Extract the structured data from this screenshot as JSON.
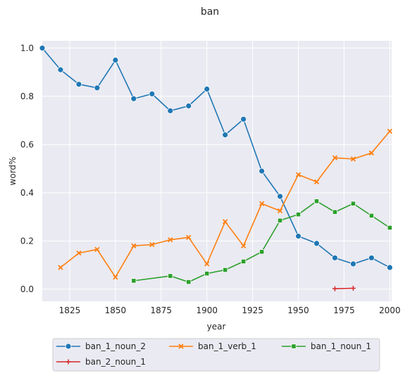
{
  "chart_data": {
    "type": "line",
    "title": "ban",
    "xlabel": "year",
    "ylabel": "word%",
    "xlim": [
      1810,
      2001
    ],
    "ylim": [
      -0.05,
      1.03
    ],
    "xticks": [
      1825,
      1850,
      1875,
      1900,
      1925,
      1950,
      1975,
      2000
    ],
    "yticks": [
      0.0,
      0.2,
      0.4,
      0.6,
      0.8,
      1.0
    ],
    "xtick_labels": [
      "1825",
      "1850",
      "1875",
      "1900",
      "1925",
      "1950",
      "1975",
      "2000"
    ],
    "ytick_labels": [
      "0.0",
      "0.2",
      "0.4",
      "0.6",
      "0.8",
      "1.0"
    ],
    "grid": true,
    "legend_position": "bottom",
    "series": [
      {
        "name": "ban_1_noun_2",
        "color": "#1f77b4",
        "marker": "circle",
        "x": [
          1810,
          1820,
          1830,
          1840,
          1850,
          1860,
          1870,
          1880,
          1890,
          1900,
          1910,
          1920,
          1930,
          1940,
          1950,
          1960,
          1970,
          1980,
          1990,
          2000
        ],
        "y": [
          1.0,
          0.91,
          0.85,
          0.835,
          0.95,
          0.79,
          0.81,
          0.74,
          0.76,
          0.83,
          0.64,
          0.705,
          0.49,
          0.385,
          0.22,
          0.19,
          0.13,
          0.105,
          0.13,
          0.09
        ]
      },
      {
        "name": "ban_1_verb_1",
        "color": "#ff7f0e",
        "marker": "x",
        "x": [
          1820,
          1830,
          1840,
          1850,
          1860,
          1870,
          1880,
          1890,
          1900,
          1910,
          1920,
          1930,
          1940,
          1950,
          1960,
          1970,
          1980,
          1990,
          2000
        ],
        "y": [
          0.09,
          0.15,
          0.165,
          0.05,
          0.18,
          0.185,
          0.205,
          0.215,
          0.105,
          0.28,
          0.18,
          0.355,
          0.325,
          0.475,
          0.445,
          0.545,
          0.54,
          0.565,
          0.655
        ]
      },
      {
        "name": "ban_1_noun_1",
        "color": "#2ca02c",
        "marker": "square",
        "x": [
          1860,
          1880,
          1890,
          1900,
          1910,
          1920,
          1930,
          1940,
          1950,
          1960,
          1970,
          1980,
          1990,
          2000
        ],
        "y": [
          0.035,
          0.055,
          0.03,
          0.065,
          0.08,
          0.115,
          0.155,
          0.285,
          0.31,
          0.365,
          0.32,
          0.355,
          0.305,
          0.255
        ]
      },
      {
        "name": "ban_2_noun_1",
        "color": "#d62728",
        "marker": "plus",
        "x": [
          1970,
          1980
        ],
        "y": [
          0.002,
          0.004
        ]
      }
    ]
  }
}
